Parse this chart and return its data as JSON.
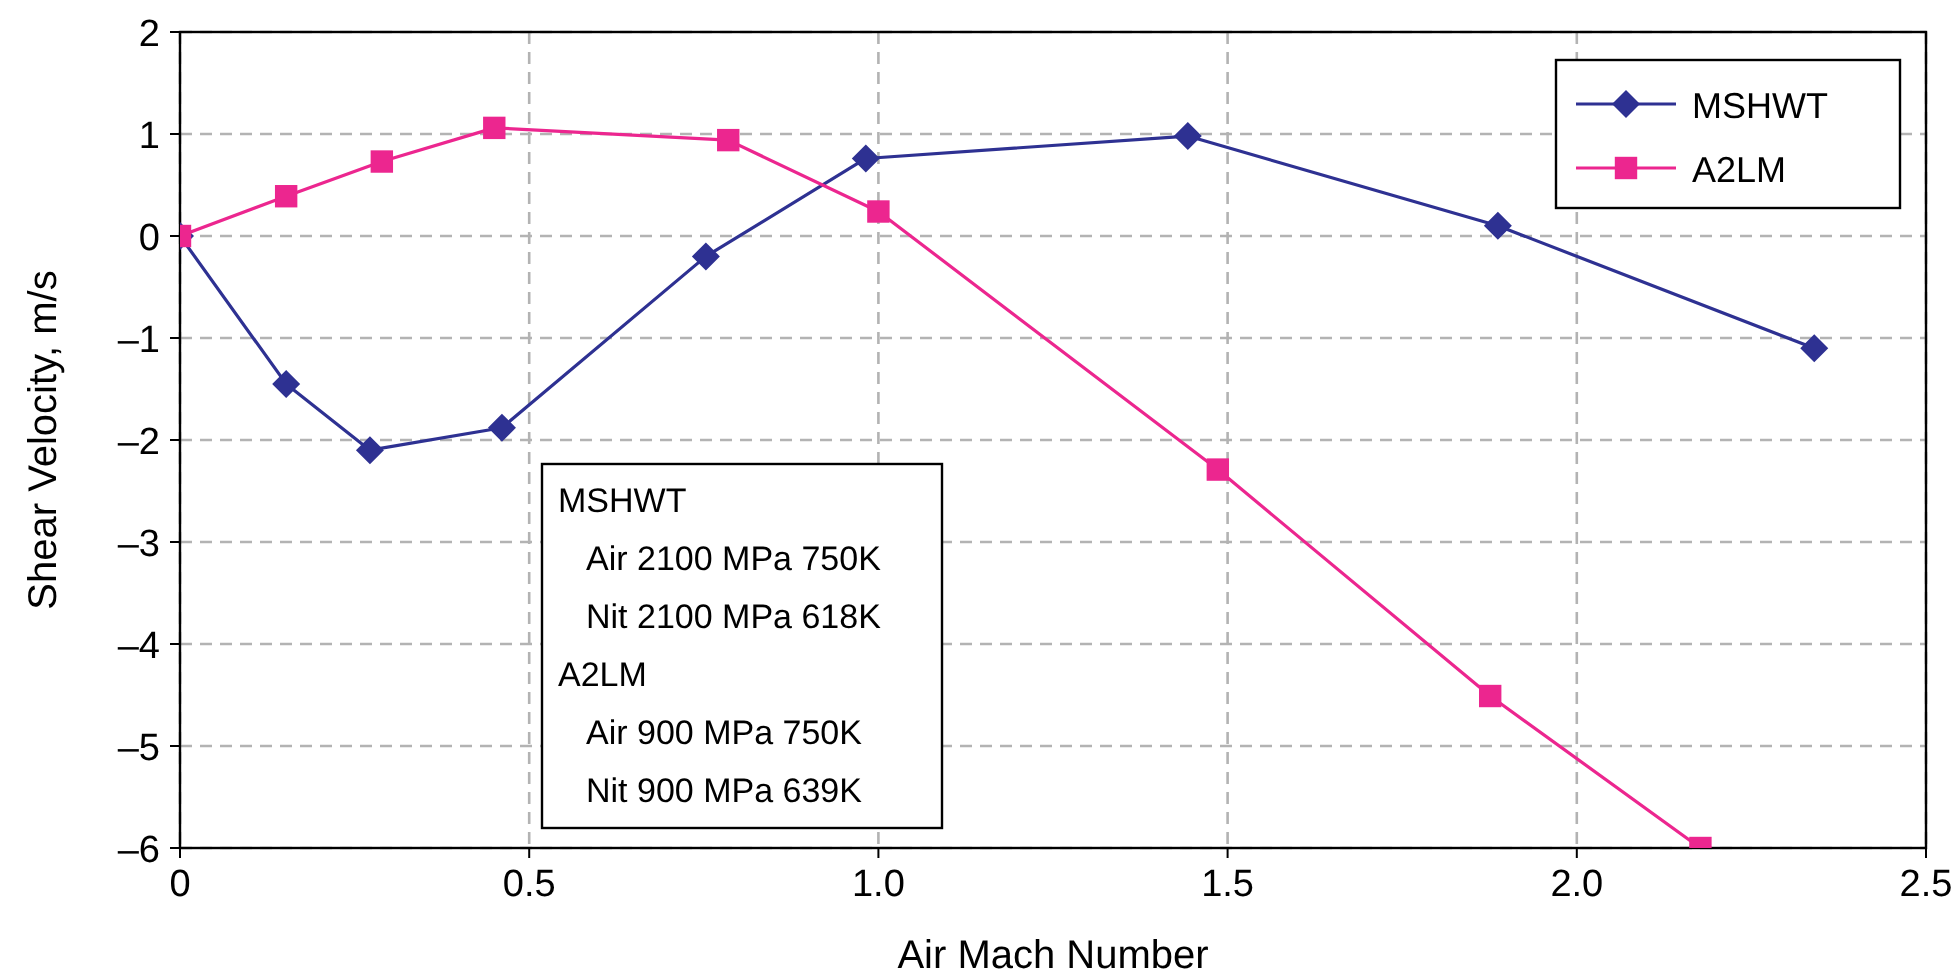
{
  "chart_data": {
    "type": "line",
    "xlabel": "Air Mach Number",
    "ylabel": "Shear Velocity, m/s",
    "xlim": [
      0,
      2.5
    ],
    "ylim": [
      -6,
      2
    ],
    "xticks": [
      {
        "value": 0,
        "label": "0"
      },
      {
        "value": 0.5,
        "label": "0.5"
      },
      {
        "value": 1,
        "label": "1.0"
      },
      {
        "value": 1.5,
        "label": "1.5"
      },
      {
        "value": 2,
        "label": "2.0"
      },
      {
        "value": 2.5,
        "label": "2.5"
      }
    ],
    "yticks": [
      {
        "value": -6,
        "label": "–6"
      },
      {
        "value": -5,
        "label": "–5"
      },
      {
        "value": -4,
        "label": "–4"
      },
      {
        "value": -3,
        "label": "–3"
      },
      {
        "value": -2,
        "label": "–2"
      },
      {
        "value": -1,
        "label": "–1"
      },
      0,
      1,
      2
    ],
    "grid": true,
    "legend": "top right",
    "line_style": "solid",
    "series": [
      {
        "name": "MSHWT",
        "color": "#2e3192",
        "marker": "diamond",
        "x": [
          0,
          0.152,
          0.272,
          0.461,
          0.753,
          0.982,
          1.443,
          1.887,
          2.34
        ],
        "values": [
          0,
          -1.45,
          -2.1,
          -1.88,
          -0.2,
          0.76,
          0.98,
          0.1,
          -1.1
        ]
      },
      {
        "name": "A2LM",
        "color": "#ec268f",
        "marker": "square",
        "x": [
          0,
          0.152,
          0.289,
          0.45,
          0.785,
          1.0,
          1.486,
          1.876,
          2.177
        ],
        "values": [
          0,
          0.39,
          0.73,
          1.06,
          0.94,
          0.24,
          -2.29,
          -4.51,
          -6
        ]
      }
    ],
    "annotations": [
      "MSHWT",
      "Air 2100 MPa 750K",
      "Nit 2100 MPa 618K",
      "A2LM",
      "Air 900 MPa 750K",
      "Nit 900 MPa 639K"
    ]
  }
}
